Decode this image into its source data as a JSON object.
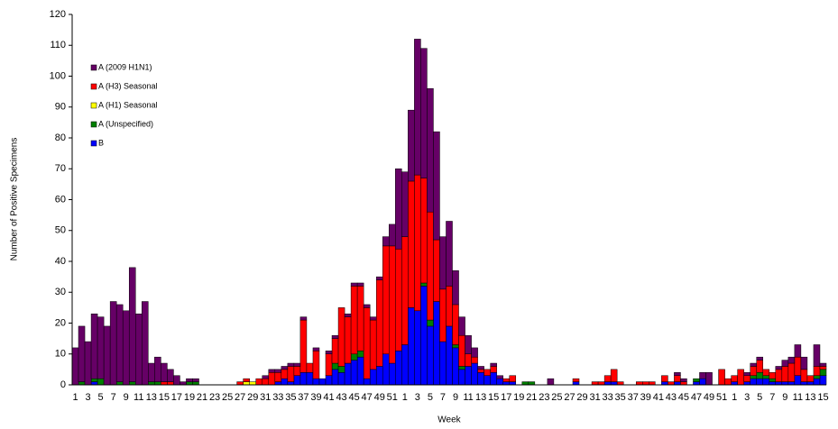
{
  "chart_data": {
    "type": "stacked-bar",
    "x_label": "Week",
    "y_label": "Number of Positive Specimens",
    "ylim": [
      0,
      120
    ],
    "yticks": [
      0,
      10,
      20,
      30,
      40,
      50,
      60,
      70,
      80,
      90,
      100,
      110,
      120
    ],
    "categories": [
      "1",
      null,
      "3",
      null,
      "5",
      null,
      "7",
      null,
      "9",
      null,
      "11",
      null,
      "13",
      null,
      "15",
      null,
      "17",
      null,
      "19",
      null,
      "21",
      null,
      "23",
      null,
      "25",
      null,
      "27",
      null,
      "29",
      null,
      "31",
      null,
      "33",
      null,
      "35",
      null,
      "37",
      null,
      "39",
      null,
      "41",
      null,
      "43",
      null,
      "45",
      null,
      "47",
      null,
      "49",
      null,
      "51",
      null,
      "1",
      null,
      "3",
      null,
      "5",
      null,
      "7",
      null,
      "9",
      null,
      "11",
      null,
      "13",
      null,
      "15",
      null,
      "17",
      null,
      "19",
      null,
      "21",
      null,
      "23",
      null,
      "25",
      null,
      "27",
      null,
      "29",
      null,
      "31",
      null,
      "33",
      null,
      "35",
      null,
      "37",
      null,
      "39",
      null,
      "41",
      null,
      "43",
      null,
      "45",
      null,
      "47",
      null,
      "49",
      null,
      "51",
      null,
      "1",
      null,
      "3",
      null,
      "5",
      null,
      "7",
      null,
      "9",
      null,
      "11",
      null,
      "13",
      null,
      "15"
    ],
    "series": [
      {
        "name": "A (2009 H1N1)",
        "color": "#660066",
        "values": [
          12,
          18,
          14,
          21,
          20,
          19,
          27,
          25,
          24,
          37,
          23,
          27,
          6,
          8,
          6,
          4,
          3,
          1,
          1,
          1,
          0,
          0,
          0,
          0,
          0,
          0,
          0,
          0,
          0,
          0,
          1,
          1,
          1,
          1,
          1,
          1,
          1,
          0,
          1,
          0,
          1,
          1,
          0,
          1,
          1,
          1,
          1,
          1,
          1,
          3,
          7,
          26,
          21,
          23,
          44,
          42,
          40,
          35,
          17,
          21,
          11,
          6,
          6,
          3,
          1,
          0,
          1,
          1,
          0,
          0,
          0,
          0,
          0,
          0,
          0,
          2,
          0,
          0,
          0,
          0,
          0,
          0,
          0,
          0,
          0,
          0,
          0,
          0,
          0,
          0,
          0,
          0,
          0,
          0,
          0,
          1,
          1,
          0,
          0,
          2,
          4,
          0,
          0,
          0,
          0,
          0,
          1,
          1,
          1,
          0,
          0,
          1,
          2,
          2,
          4,
          4,
          0,
          7,
          1
        ]
      },
      {
        "name": "A (H3) Seasonal",
        "color": "#ff0000",
        "values": [
          0,
          0,
          0,
          0,
          0,
          0,
          0,
          0,
          0,
          0,
          0,
          0,
          0,
          0,
          1,
          1,
          0,
          0,
          0,
          0,
          0,
          0,
          0,
          0,
          0,
          0,
          1,
          1,
          0,
          2,
          2,
          4,
          3,
          3,
          5,
          3,
          17,
          3,
          9,
          0,
          7,
          8,
          19,
          15,
          22,
          21,
          23,
          16,
          28,
          35,
          38,
          33,
          35,
          41,
          44,
          34,
          35,
          20,
          17,
          13,
          13,
          10,
          4,
          2,
          1,
          2,
          2,
          0,
          1,
          2,
          0,
          0,
          0,
          0,
          0,
          0,
          0,
          0,
          0,
          1,
          0,
          0,
          1,
          1,
          2,
          4,
          1,
          0,
          0,
          1,
          1,
          1,
          0,
          2,
          1,
          2,
          1,
          0,
          0,
          0,
          0,
          0,
          5,
          2,
          2,
          5,
          2,
          3,
          4,
          2,
          2,
          4,
          5,
          6,
          6,
          4,
          2,
          3,
          1
        ]
      },
      {
        "name": "A (H1) Seasonal",
        "color": "#ffff00",
        "values": [
          0,
          0,
          0,
          0,
          0,
          0,
          0,
          0,
          0,
          0,
          0,
          0,
          0,
          0,
          0,
          0,
          0,
          0,
          0,
          0,
          0,
          0,
          0,
          0,
          0,
          0,
          0,
          1,
          1,
          0,
          0,
          0,
          0,
          0,
          0,
          0,
          0,
          0,
          0,
          0,
          0,
          0,
          0,
          0,
          0,
          0,
          0,
          0,
          0,
          0,
          0,
          0,
          0,
          0,
          0,
          0,
          0,
          0,
          0,
          0,
          0,
          0,
          0,
          0,
          0,
          0,
          0,
          0,
          0,
          0,
          0,
          0,
          0,
          0,
          0,
          0,
          0,
          0,
          0,
          0,
          0,
          0,
          0,
          0,
          0,
          0,
          0,
          0,
          0,
          0,
          0,
          0,
          0,
          0,
          0,
          0,
          0,
          0,
          0,
          0,
          0,
          0,
          0,
          0,
          0,
          0,
          0,
          0,
          0,
          0,
          0,
          0,
          0,
          0,
          0,
          0,
          0,
          0,
          0
        ]
      },
      {
        "name": "A (Unspecified)",
        "color": "#008000",
        "values": [
          0,
          1,
          0,
          1,
          2,
          0,
          0,
          1,
          0,
          1,
          0,
          0,
          1,
          1,
          0,
          0,
          0,
          0,
          1,
          1,
          0,
          0,
          0,
          0,
          0,
          0,
          0,
          0,
          0,
          0,
          0,
          0,
          0,
          0,
          0,
          0,
          0,
          0,
          0,
          0,
          0,
          2,
          2,
          0,
          2,
          2,
          0,
          0,
          0,
          0,
          0,
          0,
          0,
          0,
          0,
          1,
          2,
          0,
          0,
          0,
          1,
          1,
          0,
          0,
          0,
          0,
          0,
          0,
          0,
          0,
          0,
          1,
          1,
          0,
          0,
          0,
          0,
          0,
          0,
          0,
          0,
          0,
          0,
          0,
          0,
          0,
          0,
          0,
          0,
          0,
          0,
          0,
          0,
          0,
          0,
          0,
          0,
          0,
          1,
          0,
          0,
          0,
          0,
          0,
          0,
          0,
          0,
          1,
          2,
          1,
          1,
          0,
          0,
          0,
          0,
          0,
          0,
          1,
          2
        ]
      },
      {
        "name": "B",
        "color": "#0000ff",
        "values": [
          0,
          0,
          0,
          1,
          0,
          0,
          0,
          0,
          0,
          0,
          0,
          0,
          0,
          0,
          0,
          0,
          0,
          0,
          0,
          0,
          0,
          0,
          0,
          0,
          0,
          0,
          0,
          0,
          0,
          0,
          0,
          0,
          1,
          2,
          1,
          3,
          4,
          4,
          2,
          2,
          3,
          5,
          4,
          7,
          8,
          9,
          2,
          5,
          6,
          10,
          7,
          11,
          13,
          25,
          24,
          32,
          19,
          27,
          14,
          19,
          12,
          5,
          6,
          7,
          4,
          3,
          4,
          2,
          1,
          1,
          0,
          0,
          0,
          0,
          0,
          0,
          0,
          0,
          0,
          1,
          0,
          0,
          0,
          0,
          1,
          1,
          0,
          0,
          0,
          0,
          0,
          0,
          0,
          1,
          0,
          1,
          0,
          0,
          1,
          2,
          0,
          0,
          0,
          0,
          1,
          0,
          1,
          2,
          2,
          2,
          1,
          1,
          1,
          1,
          3,
          1,
          1,
          2,
          3
        ]
      }
    ]
  }
}
